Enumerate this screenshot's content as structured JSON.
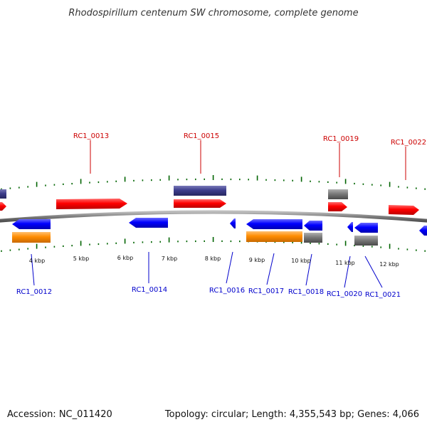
{
  "title": "Rhodospirillum centenum SW chromosome, complete genome",
  "footer": {
    "accession": "Accession: NC_011420",
    "topology": "Topology: circular; Length: 4,355,543 bp; Genes: 4,066"
  },
  "colors": {
    "forward_gene": "#ff0000",
    "reverse_gene": "#0000ff",
    "rna_gene": "#3d3d8c",
    "orange_feature": "#ff8c00",
    "gray_feature": "#808080",
    "backbone": "#808080",
    "ticks": "#006400",
    "forward_label": "#cc0000",
    "reverse_label": "#0000cc"
  },
  "scale": {
    "ticks": [
      {
        "label": "4 kbp"
      },
      {
        "label": "5 kbp"
      },
      {
        "label": "6 kbp"
      },
      {
        "label": "7 kbp"
      },
      {
        "label": "8 kbp"
      },
      {
        "label": "9 kbp"
      },
      {
        "label": "10 kbp"
      },
      {
        "label": "11 kbp"
      },
      {
        "label": "12 kbp"
      }
    ]
  },
  "genes": {
    "top_labels": [
      {
        "name": "RC1_0013"
      },
      {
        "name": "RC1_0015"
      },
      {
        "name": "RC1_0019"
      },
      {
        "name": "RC1_0022"
      }
    ],
    "bottom_labels": [
      {
        "name": "RC1_0012"
      },
      {
        "name": "RC1_0014"
      },
      {
        "name": "RC1_0016"
      },
      {
        "name": "RC1_0017"
      },
      {
        "name": "RC1_0018"
      },
      {
        "name": "RC1_0020"
      },
      {
        "name": "RC1_0021"
      }
    ]
  }
}
